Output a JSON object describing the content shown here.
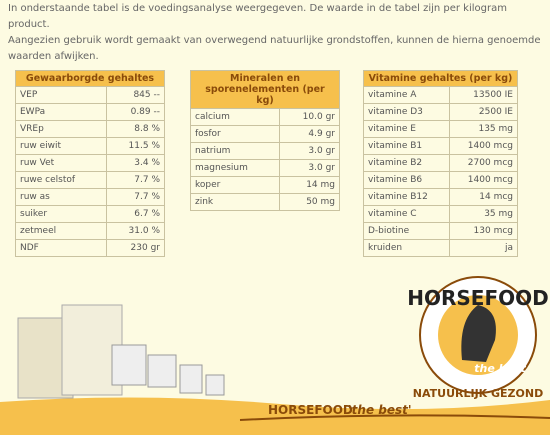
{
  "intro": [
    "In onderstaande tabel is de voedingsanalyse weergegeven. De waarde in de tabel zijn per kilogram product.",
    "Aangezien gebruik wordt gemaakt van overwegend natuurlijke grondstoffen, kunnen de hierna genoemde waarden afwijken."
  ],
  "tables": [
    {
      "header": "Gewaarborgde gehaltes",
      "rows": [
        [
          "VEP",
          "845 --"
        ],
        [
          "EWPa",
          "0.89 --"
        ],
        [
          "VREp",
          "8.8 %"
        ],
        [
          "ruw eiwit",
          "11.5 %"
        ],
        [
          "ruw Vet",
          "3.4 %"
        ],
        [
          "ruwe celstof",
          "7.7 %"
        ],
        [
          "ruw as",
          "7.7 %"
        ],
        [
          "suiker",
          "6.7 %"
        ],
        [
          "zetmeel",
          "31.0 %"
        ],
        [
          "NDF",
          "230 gr"
        ]
      ]
    },
    {
      "header": "Mineralen en sporenelementen (per kg)",
      "rows": [
        [
          "calcium",
          "10.0 gr"
        ],
        [
          "fosfor",
          "4.9 gr"
        ],
        [
          "natrium",
          "3.0 gr"
        ],
        [
          "magnesium",
          "3.0 gr"
        ],
        [
          "koper",
          "14 mg"
        ],
        [
          "zink",
          "50 mg"
        ]
      ]
    },
    {
      "header": "Vitamine gehaltes (per kg)",
      "rows": [
        [
          "vitamine A",
          "13500 IE"
        ],
        [
          "vitamine D3",
          "2500 IE"
        ],
        [
          "vitamine E",
          "135 mg"
        ],
        [
          "vitamine B1",
          "1400 mcg"
        ],
        [
          "vitamine B2",
          "2700 mcg"
        ],
        [
          "vitamine B6",
          "1400 mcg"
        ],
        [
          "vitamine B12",
          "14 mcg"
        ],
        [
          "vitamine C",
          "35 mg"
        ],
        [
          "D-biotine",
          "130 mcg"
        ],
        [
          "kruiden",
          "ja"
        ]
      ]
    }
  ],
  "logo": {
    "brand": "HORSEFOOD",
    "tagline": "the best",
    "slogan": "NATUURLIJK GEZOND"
  },
  "footer": {
    "brand": "HORSEFOOD",
    "tagline": "'the best'"
  }
}
